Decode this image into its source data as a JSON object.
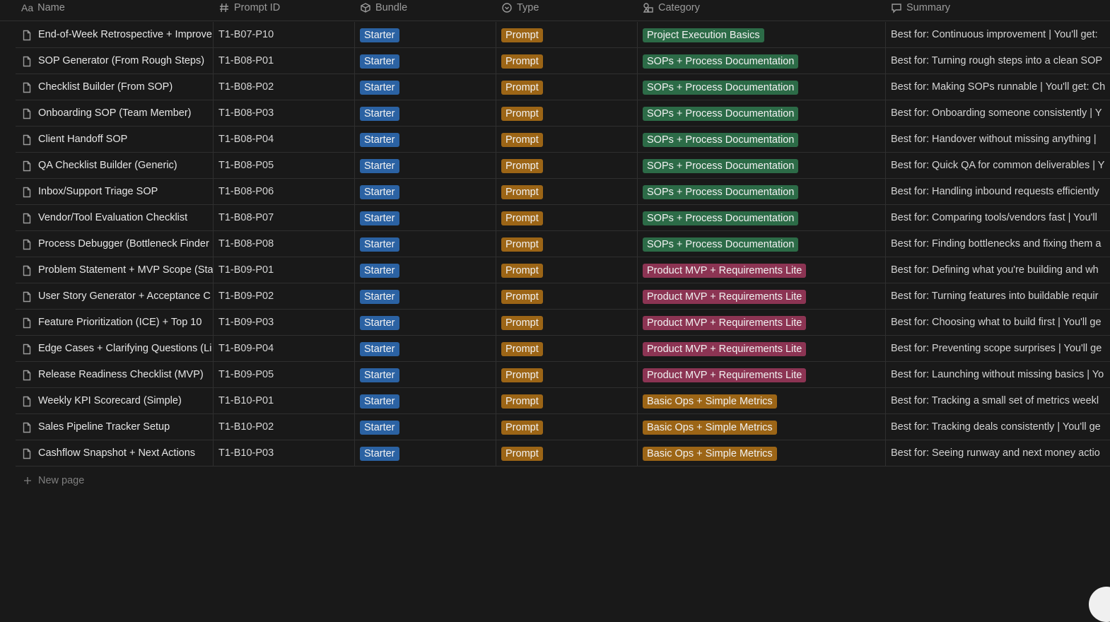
{
  "header": {
    "columns": [
      {
        "icon": "Aa",
        "label": "Name"
      },
      {
        "label": "Prompt ID"
      },
      {
        "label": "Bundle"
      },
      {
        "label": "Type"
      },
      {
        "label": "Category"
      },
      {
        "label": "Summary"
      }
    ]
  },
  "table": {
    "rows": [
      {
        "name": "End-of-Week Retrospective + Improve",
        "prompt_id": "T1-B07-P10",
        "bundle": {
          "text": "Starter",
          "color": "#2b62a3"
        },
        "type": {
          "text": "Prompt",
          "color": "#9c6516"
        },
        "category": {
          "text": "Project Execution Basics",
          "color": "#2c6b47"
        },
        "summary": "Best for: Continuous improvement | You'll get:"
      },
      {
        "name": "SOP Generator (From Rough Steps)",
        "prompt_id": "T1-B08-P01",
        "bundle": {
          "text": "Starter",
          "color": "#2b62a3"
        },
        "type": {
          "text": "Prompt",
          "color": "#9c6516"
        },
        "category": {
          "text": "SOPs + Process Documentation",
          "color": "#2c6b47"
        },
        "summary": "Best for: Turning rough steps into a clean SOP"
      },
      {
        "name": "Checklist Builder (From SOP)",
        "prompt_id": "T1-B08-P02",
        "bundle": {
          "text": "Starter",
          "color": "#2b62a3"
        },
        "type": {
          "text": "Prompt",
          "color": "#9c6516"
        },
        "category": {
          "text": "SOPs + Process Documentation",
          "color": "#2c6b47"
        },
        "summary": "Best for: Making SOPs runnable | You'll get: Ch"
      },
      {
        "name": "Onboarding SOP (Team Member)",
        "prompt_id": "T1-B08-P03",
        "bundle": {
          "text": "Starter",
          "color": "#2b62a3"
        },
        "type": {
          "text": "Prompt",
          "color": "#9c6516"
        },
        "category": {
          "text": "SOPs + Process Documentation",
          "color": "#2c6b47"
        },
        "summary": "Best for: Onboarding someone consistently | Y"
      },
      {
        "name": "Client Handoff SOP",
        "prompt_id": "T1-B08-P04",
        "bundle": {
          "text": "Starter",
          "color": "#2b62a3"
        },
        "type": {
          "text": "Prompt",
          "color": "#9c6516"
        },
        "category": {
          "text": "SOPs + Process Documentation",
          "color": "#2c6b47"
        },
        "summary": "Best for: Handover without missing anything |"
      },
      {
        "name": "QA Checklist Builder (Generic)",
        "prompt_id": "T1-B08-P05",
        "bundle": {
          "text": "Starter",
          "color": "#2b62a3"
        },
        "type": {
          "text": "Prompt",
          "color": "#9c6516"
        },
        "category": {
          "text": "SOPs + Process Documentation",
          "color": "#2c6b47"
        },
        "summary": "Best for: Quick QA for common deliverables | Y"
      },
      {
        "name": "Inbox/Support Triage SOP",
        "prompt_id": "T1-B08-P06",
        "bundle": {
          "text": "Starter",
          "color": "#2b62a3"
        },
        "type": {
          "text": "Prompt",
          "color": "#9c6516"
        },
        "category": {
          "text": "SOPs + Process Documentation",
          "color": "#2c6b47"
        },
        "summary": "Best for: Handling inbound requests efficiently"
      },
      {
        "name": "Vendor/Tool Evaluation Checklist",
        "prompt_id": "T1-B08-P07",
        "bundle": {
          "text": "Starter",
          "color": "#2b62a3"
        },
        "type": {
          "text": "Prompt",
          "color": "#9c6516"
        },
        "category": {
          "text": "SOPs + Process Documentation",
          "color": "#2c6b47"
        },
        "summary": "Best for: Comparing tools/vendors fast | You'll"
      },
      {
        "name": "Process Debugger (Bottleneck Finder",
        "prompt_id": "T1-B08-P08",
        "bundle": {
          "text": "Starter",
          "color": "#2b62a3"
        },
        "type": {
          "text": "Prompt",
          "color": "#9c6516"
        },
        "category": {
          "text": "SOPs + Process Documentation",
          "color": "#2c6b47"
        },
        "summary": "Best for: Finding bottlenecks and fixing them a"
      },
      {
        "name": "Problem Statement + MVP Scope (Sta",
        "prompt_id": "T1-B09-P01",
        "bundle": {
          "text": "Starter",
          "color": "#2b62a3"
        },
        "type": {
          "text": "Prompt",
          "color": "#9c6516"
        },
        "category": {
          "text": "Product MVP + Requirements Lite",
          "color": "#8c3453"
        },
        "summary": "Best for: Defining what you're building and wh"
      },
      {
        "name": "User Story Generator + Acceptance C",
        "prompt_id": "T1-B09-P02",
        "bundle": {
          "text": "Starter",
          "color": "#2b62a3"
        },
        "type": {
          "text": "Prompt",
          "color": "#9c6516"
        },
        "category": {
          "text": "Product MVP + Requirements Lite",
          "color": "#8c3453"
        },
        "summary": "Best for: Turning features into buildable requir"
      },
      {
        "name": "Feature Prioritization (ICE) + Top 10",
        "prompt_id": "T1-B09-P03",
        "bundle": {
          "text": "Starter",
          "color": "#2b62a3"
        },
        "type": {
          "text": "Prompt",
          "color": "#9c6516"
        },
        "category": {
          "text": "Product MVP + Requirements Lite",
          "color": "#8c3453"
        },
        "summary": "Best for: Choosing what to build first | You'll ge"
      },
      {
        "name": "Edge Cases + Clarifying Questions (Li",
        "prompt_id": "T1-B09-P04",
        "bundle": {
          "text": "Starter",
          "color": "#2b62a3"
        },
        "type": {
          "text": "Prompt",
          "color": "#9c6516"
        },
        "category": {
          "text": "Product MVP + Requirements Lite",
          "color": "#8c3453"
        },
        "summary": "Best for: Preventing scope surprises | You'll ge"
      },
      {
        "name": "Release Readiness Checklist (MVP)",
        "prompt_id": "T1-B09-P05",
        "bundle": {
          "text": "Starter",
          "color": "#2b62a3"
        },
        "type": {
          "text": "Prompt",
          "color": "#9c6516"
        },
        "category": {
          "text": "Product MVP + Requirements Lite",
          "color": "#8c3453"
        },
        "summary": "Best for: Launching without missing basics | Yo"
      },
      {
        "name": "Weekly KPI Scorecard (Simple)",
        "prompt_id": "T1-B10-P01",
        "bundle": {
          "text": "Starter",
          "color": "#2b62a3"
        },
        "type": {
          "text": "Prompt",
          "color": "#9c6516"
        },
        "category": {
          "text": "Basic Ops + Simple Metrics",
          "color": "#9c6516"
        },
        "summary": "Best for: Tracking a small set of metrics weekl"
      },
      {
        "name": "Sales Pipeline Tracker Setup",
        "prompt_id": "T1-B10-P02",
        "bundle": {
          "text": "Starter",
          "color": "#2b62a3"
        },
        "type": {
          "text": "Prompt",
          "color": "#9c6516"
        },
        "category": {
          "text": "Basic Ops + Simple Metrics",
          "color": "#9c6516"
        },
        "summary": "Best for: Tracking deals consistently | You'll ge"
      },
      {
        "name": "Cashflow Snapshot + Next Actions",
        "prompt_id": "T1-B10-P03",
        "bundle": {
          "text": "Starter",
          "color": "#2b62a3"
        },
        "type": {
          "text": "Prompt",
          "color": "#9c6516"
        },
        "category": {
          "text": "Basic Ops + Simple Metrics",
          "color": "#9c6516"
        },
        "summary": "Best for: Seeing runway and next money actio"
      }
    ]
  },
  "new_page": "New page"
}
